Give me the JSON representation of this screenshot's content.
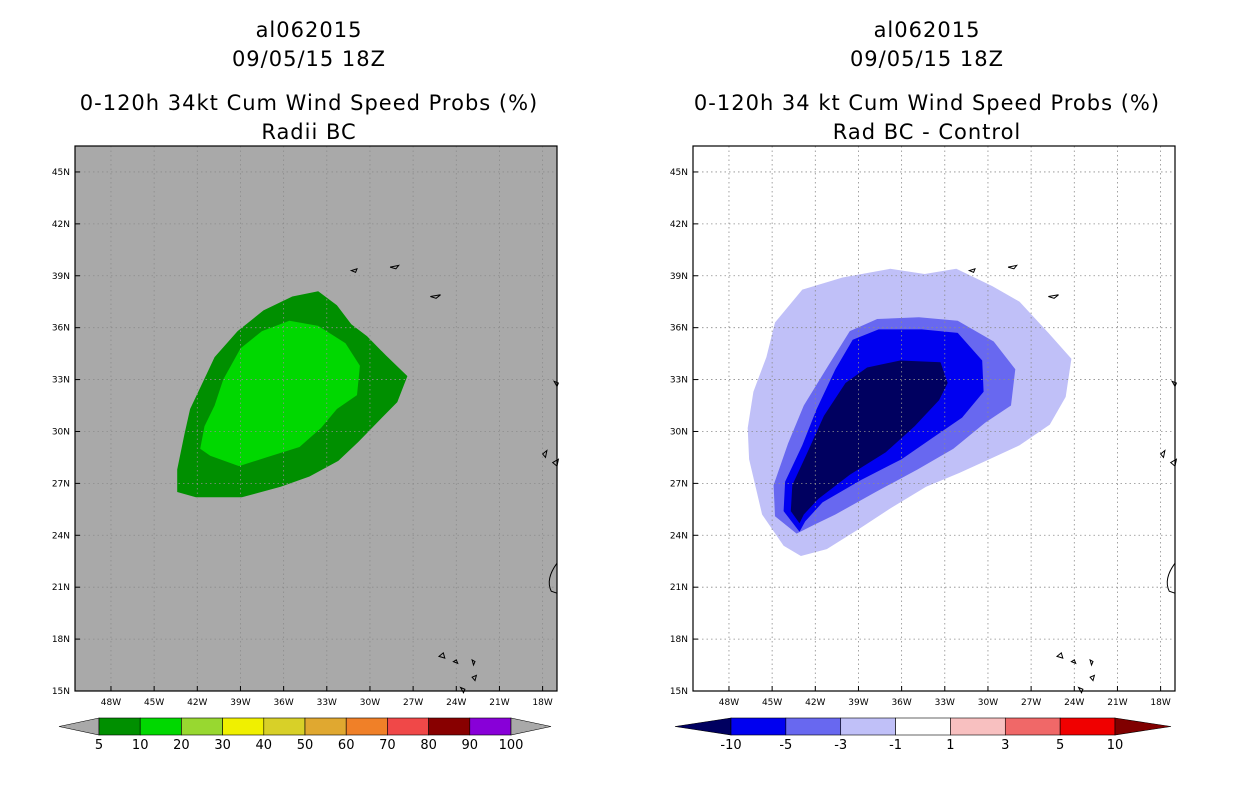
{
  "left": {
    "title_line1": "al062015",
    "title_line2": "09/05/15 18Z",
    "title_line3": "0-120h 34kt Cum Wind Speed Probs (%)",
    "title_line4": "Radii BC",
    "background_color": "#a9a9a9",
    "colorbar": {
      "colors": [
        "#008f00",
        "#00d800",
        "#98d830",
        "#f0f000",
        "#d8d028",
        "#e0a830",
        "#f08028",
        "#f04848",
        "#880000",
        "#8800d8"
      ],
      "labels": [
        "5",
        "10",
        "20",
        "30",
        "40",
        "50",
        "60",
        "70",
        "80",
        "90",
        "100"
      ],
      "end_color": "#a9a9a9"
    }
  },
  "right": {
    "title_line1": "al062015",
    "title_line2": "09/05/15 18Z",
    "title_line3": "0-120h 34 kt Cum Wind Speed Probs (%)",
    "title_line4": "Rad BC - Control",
    "background_color": "#ffffff",
    "colorbar": {
      "colors": [
        "#0000f0",
        "#6868f0",
        "#c0c0f8",
        "#ffffff",
        "#f8c0c0",
        "#f06868",
        "#f00000"
      ],
      "labels": [
        "-10",
        "-5",
        "-3",
        "-1",
        "1",
        "3",
        "5",
        "10"
      ],
      "low_end_color": "#000060",
      "high_end_color": "#800000"
    }
  },
  "chart_data": [
    {
      "type": "contour-map",
      "title": "0-120h 34kt Cum Wind Speed Probs (%) Radii BC",
      "storm": "al062015",
      "valid": "09/05/15 18Z",
      "lon_range": [
        -50.5,
        -17
      ],
      "lat_range": [
        15,
        46.5
      ],
      "lon_ticks": [
        "48W",
        "45W",
        "42W",
        "39W",
        "36W",
        "33W",
        "30W",
        "27W",
        "24W",
        "21W",
        "18W"
      ],
      "lat_ticks": [
        "15N",
        "18N",
        "21N",
        "24N",
        "27N",
        "30N",
        "33N",
        "36N",
        "39N",
        "42N",
        "45N"
      ],
      "levels": [
        5,
        10,
        20,
        30,
        40,
        50,
        60,
        70,
        80,
        90,
        100
      ],
      "regions": [
        {
          "level_range": [
            5,
            10
          ],
          "color": "#008f00",
          "polygon": [
            [
              -42.1,
              26.2
            ],
            [
              -43.4,
              26.5
            ],
            [
              -43.4,
              27.8
            ],
            [
              -42.9,
              29.8
            ],
            [
              -42.5,
              31.3
            ],
            [
              -41.7,
              32.7
            ],
            [
              -40.8,
              34.3
            ],
            [
              -39.2,
              35.8
            ],
            [
              -37.4,
              37.0
            ],
            [
              -35.4,
              37.8
            ],
            [
              -33.6,
              38.1
            ],
            [
              -32.3,
              37.3
            ],
            [
              -31.3,
              36.2
            ],
            [
              -30.2,
              35.5
            ],
            [
              -28.9,
              34.4
            ],
            [
              -27.4,
              33.2
            ],
            [
              -28.1,
              31.7
            ],
            [
              -29.4,
              30.6
            ],
            [
              -30.8,
              29.4
            ],
            [
              -32.2,
              28.3
            ],
            [
              -34.2,
              27.4
            ],
            [
              -36.2,
              26.8
            ],
            [
              -38.9,
              26.2
            ],
            [
              -40.7,
              26.2
            ]
          ]
        },
        {
          "level_range": [
            10,
            20
          ],
          "color": "#00d800",
          "polygon": [
            [
              -41.1,
              28.6
            ],
            [
              -41.8,
              29.0
            ],
            [
              -41.5,
              30.3
            ],
            [
              -40.8,
              31.5
            ],
            [
              -40.2,
              33.0
            ],
            [
              -39.0,
              34.8
            ],
            [
              -37.5,
              35.8
            ],
            [
              -35.6,
              36.4
            ],
            [
              -33.6,
              36.1
            ],
            [
              -31.7,
              35.1
            ],
            [
              -30.7,
              33.8
            ],
            [
              -30.9,
              32.1
            ],
            [
              -32.3,
              31.3
            ],
            [
              -33.4,
              30.2
            ],
            [
              -34.9,
              29.1
            ],
            [
              -37.2,
              28.5
            ],
            [
              -39.1,
              28.0
            ]
          ]
        }
      ],
      "islands": [
        "Azores",
        "Madeira",
        "Canary Islands",
        "Cape Verde"
      ]
    },
    {
      "type": "contour-map",
      "title": "0-120h 34 kt Cum Wind Speed Probs (%) Rad BC - Control",
      "storm": "al062015",
      "valid": "09/05/15 18Z",
      "lon_range": [
        -50.5,
        -17
      ],
      "lat_range": [
        15,
        46.5
      ],
      "lon_ticks": [
        "48W",
        "45W",
        "42W",
        "39W",
        "36W",
        "33W",
        "30W",
        "27W",
        "24W",
        "21W",
        "18W"
      ],
      "lat_ticks": [
        "15N",
        "18N",
        "21N",
        "24N",
        "27N",
        "30N",
        "33N",
        "36N",
        "39N",
        "42N",
        "45N"
      ],
      "levels": [
        -10,
        -5,
        -3,
        -1,
        1,
        3,
        5,
        10
      ],
      "regions": [
        {
          "level_range": [
            -3,
            -1
          ],
          "color": "#c0c0f8",
          "polygon": [
            [
              -44.2,
              23.4
            ],
            [
              -45.7,
              25.2
            ],
            [
              -46.6,
              28.4
            ],
            [
              -46.7,
              30.2
            ],
            [
              -46.3,
              32.3
            ],
            [
              -45.4,
              34.3
            ],
            [
              -44.8,
              36.3
            ],
            [
              -42.9,
              38.2
            ],
            [
              -40.1,
              38.9
            ],
            [
              -36.8,
              39.4
            ],
            [
              -34.4,
              39.1
            ],
            [
              -32.2,
              39.4
            ],
            [
              -29.7,
              38.4
            ],
            [
              -27.8,
              37.5
            ],
            [
              -25.8,
              35.7
            ],
            [
              -24.2,
              34.2
            ],
            [
              -24.6,
              32.0
            ],
            [
              -25.7,
              30.4
            ],
            [
              -27.8,
              29.2
            ],
            [
              -29.9,
              28.4
            ],
            [
              -32.0,
              27.6
            ],
            [
              -34.3,
              26.8
            ],
            [
              -36.7,
              25.6
            ],
            [
              -38.9,
              24.4
            ],
            [
              -41.2,
              23.2
            ],
            [
              -43.0,
              22.8
            ]
          ]
        },
        {
          "level_range": [
            -5,
            -3
          ],
          "color": "#6868f0",
          "polygon": [
            [
              -43.3,
              24.1
            ],
            [
              -44.8,
              25.1
            ],
            [
              -44.9,
              26.9
            ],
            [
              -43.9,
              29.3
            ],
            [
              -42.8,
              31.5
            ],
            [
              -41.1,
              33.8
            ],
            [
              -39.6,
              35.8
            ],
            [
              -37.7,
              36.5
            ],
            [
              -34.8,
              36.6
            ],
            [
              -32.1,
              36.4
            ],
            [
              -29.6,
              35.2
            ],
            [
              -28.1,
              33.6
            ],
            [
              -28.4,
              31.5
            ],
            [
              -30.2,
              30.5
            ],
            [
              -32.4,
              29.0
            ],
            [
              -34.9,
              27.8
            ],
            [
              -37.8,
              26.5
            ],
            [
              -40.6,
              25.2
            ],
            [
              -42.1,
              24.6
            ]
          ]
        },
        {
          "level_range": [
            -10,
            -5
          ],
          "color": "#0000f0",
          "polygon": [
            [
              -43.1,
              24.2
            ],
            [
              -44.2,
              25.4
            ],
            [
              -44.1,
              27.1
            ],
            [
              -42.9,
              29.2
            ],
            [
              -41.9,
              31.3
            ],
            [
              -40.6,
              33.6
            ],
            [
              -39.4,
              35.3
            ],
            [
              -37.6,
              35.9
            ],
            [
              -34.6,
              35.9
            ],
            [
              -32.1,
              35.7
            ],
            [
              -30.4,
              34.1
            ],
            [
              -30.3,
              32.3
            ],
            [
              -31.8,
              30.8
            ],
            [
              -33.9,
              29.6
            ],
            [
              -36.0,
              28.4
            ],
            [
              -38.8,
              27.2
            ],
            [
              -41.5,
              25.9
            ],
            [
              -42.7,
              24.8
            ]
          ]
        },
        {
          "level_range": [
            -100,
            -10
          ],
          "color": "#000060",
          "polygon": [
            [
              -43.1,
              24.7
            ],
            [
              -43.7,
              25.4
            ],
            [
              -43.6,
              26.9
            ],
            [
              -42.6,
              28.7
            ],
            [
              -41.4,
              30.9
            ],
            [
              -39.9,
              32.8
            ],
            [
              -38.4,
              33.7
            ],
            [
              -36.1,
              34.1
            ],
            [
              -33.3,
              34.0
            ],
            [
              -32.8,
              32.8
            ],
            [
              -33.4,
              31.8
            ],
            [
              -35.1,
              30.3
            ],
            [
              -37.1,
              28.8
            ],
            [
              -39.6,
              27.5
            ],
            [
              -41.8,
              26.1
            ],
            [
              -42.8,
              25.2
            ]
          ]
        }
      ],
      "islands": [
        "Azores",
        "Madeira",
        "Canary Islands",
        "Cape Verde"
      ]
    }
  ]
}
